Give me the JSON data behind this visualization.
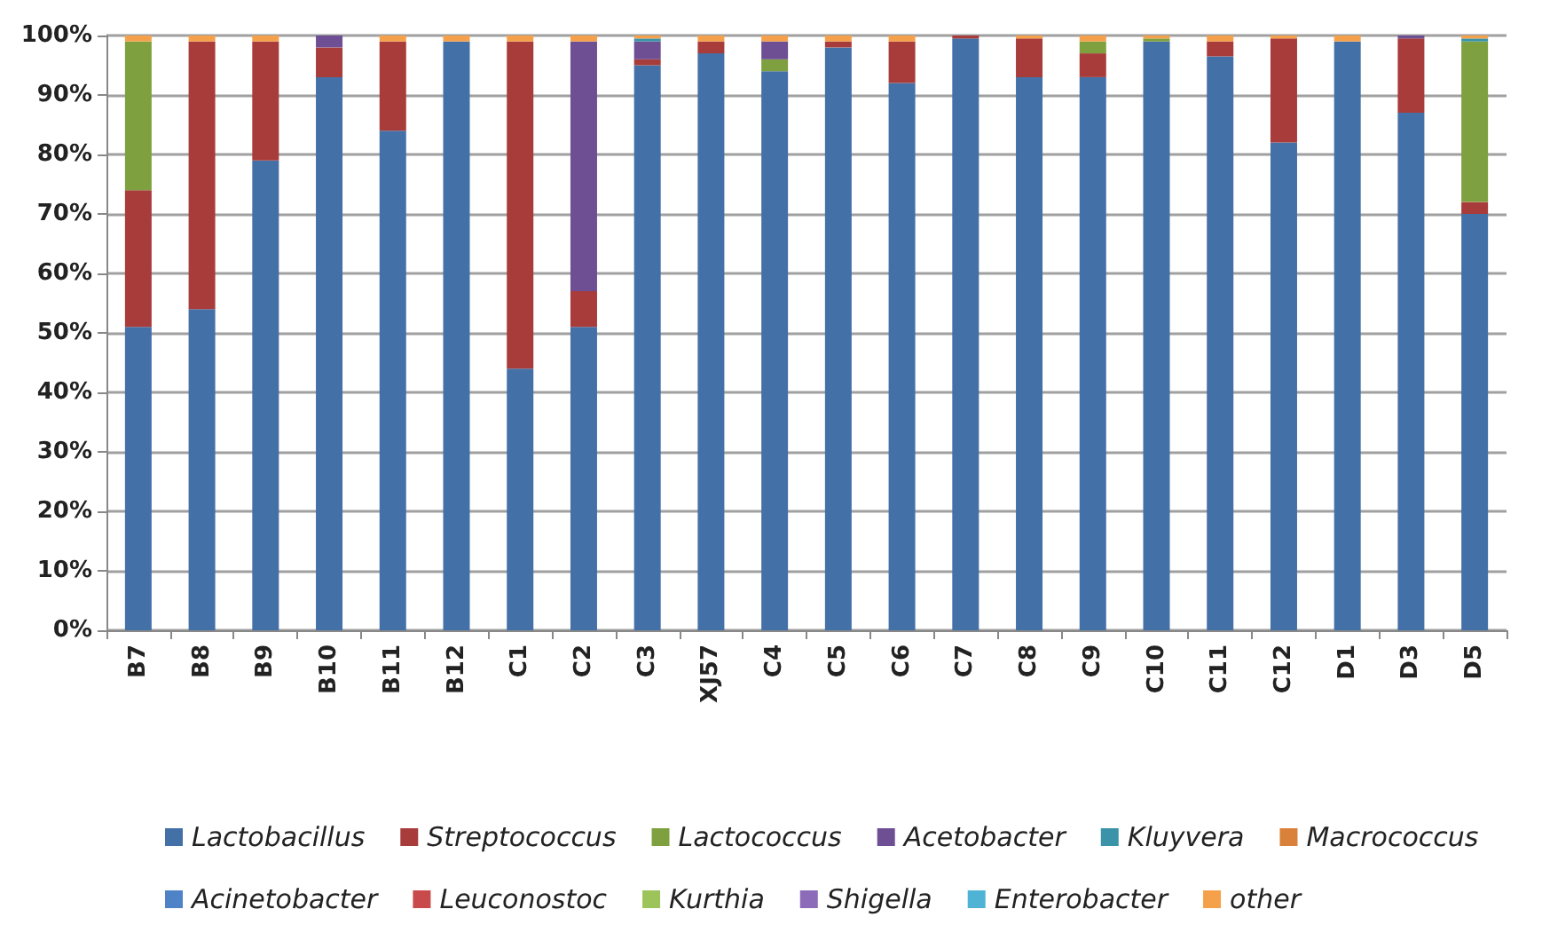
{
  "chart_data": {
    "type": "bar",
    "stacked": true,
    "grid": "y",
    "legend": "bottom",
    "categories": [
      "B7",
      "B8",
      "B9",
      "B10",
      "B11",
      "B12",
      "C1",
      "C2",
      "C3",
      "XJ57",
      "C4",
      "C5",
      "C6",
      "C7",
      "C8",
      "C9",
      "C10",
      "C11",
      "C12",
      "D1",
      "D3",
      "D5"
    ],
    "ylim": [
      0,
      100
    ],
    "yticks": [
      {
        "value": 0,
        "label": "0%"
      },
      {
        "value": 10,
        "label": "10%"
      },
      {
        "value": 20,
        "label": "20%"
      },
      {
        "value": 30,
        "label": "30%"
      },
      {
        "value": 40,
        "label": "40%"
      },
      {
        "value": 50,
        "label": "50%"
      },
      {
        "value": 60,
        "label": "60%"
      },
      {
        "value": 70,
        "label": "70%"
      },
      {
        "value": 80,
        "label": "80%"
      },
      {
        "value": 90,
        "label": "90%"
      },
      {
        "value": 100,
        "label": "100%"
      }
    ],
    "series": [
      {
        "name": "Lactobacillus",
        "color": "#4470a8",
        "values": [
          51,
          54,
          79,
          93,
          84,
          99,
          44,
          51,
          95,
          97,
          94,
          98,
          92,
          99.5,
          93,
          93,
          99,
          96.5,
          82,
          99,
          87,
          70
        ]
      },
      {
        "name": "Streptococcus",
        "color": "#a83c3a",
        "values": [
          23,
          45,
          20,
          5,
          15,
          0,
          55,
          6,
          1,
          2,
          0,
          1,
          7,
          0.5,
          6.5,
          4,
          0,
          2.5,
          17.5,
          0,
          12.5,
          2
        ]
      },
      {
        "name": "Lactococcus",
        "color": "#7fa03f",
        "values": [
          25,
          0,
          0,
          0,
          0,
          0,
          0,
          0,
          0,
          0,
          2,
          0,
          0,
          0,
          0,
          2,
          0.5,
          0,
          0,
          0,
          0,
          27
        ]
      },
      {
        "name": "Acetobacter",
        "color": "#6e4f93",
        "values": [
          0,
          0,
          0,
          2,
          0,
          0,
          0,
          42,
          3,
          0,
          3,
          0,
          0,
          0,
          0,
          0,
          0,
          0,
          0,
          0,
          0.5,
          0
        ]
      },
      {
        "name": "Kluyvera",
        "color": "#3a93a8",
        "values": [
          0,
          0,
          0,
          0,
          0,
          0,
          0,
          0,
          0.5,
          0,
          0,
          0,
          0,
          0,
          0,
          0,
          0,
          0,
          0,
          0,
          0,
          0.5
        ]
      },
      {
        "name": "Macrococcus",
        "color": "#d9813a",
        "values": [
          0,
          0,
          0,
          0,
          0,
          0,
          0,
          0,
          0,
          0,
          0,
          0,
          0,
          0,
          0,
          0,
          0,
          0,
          0,
          0,
          0,
          0
        ]
      },
      {
        "name": "Acinetobacter",
        "color": "#4f83c8",
        "values": [
          0,
          0,
          0,
          0,
          0,
          0,
          0,
          0,
          0,
          0,
          0,
          0,
          0,
          0,
          0,
          0,
          0,
          0,
          0,
          0,
          0,
          0
        ]
      },
      {
        "name": "Leuconostoc",
        "color": "#c84a4a",
        "values": [
          0,
          0,
          0,
          0,
          0,
          0,
          0,
          0,
          0,
          0,
          0,
          0,
          0,
          0,
          0,
          0,
          0,
          0,
          0,
          0,
          0,
          0
        ]
      },
      {
        "name": "Kurthia",
        "color": "#9cc45a",
        "values": [
          0,
          0,
          0,
          0,
          0,
          0,
          0,
          0,
          0,
          0,
          0,
          0,
          0,
          0,
          0,
          0,
          0,
          0,
          0,
          0,
          0,
          0
        ]
      },
      {
        "name": "Shigella",
        "color": "#8c6bb8",
        "values": [
          0,
          0,
          0,
          0,
          0,
          0,
          0,
          0,
          0,
          0,
          0,
          0,
          0,
          0,
          0,
          0,
          0,
          0,
          0,
          0,
          0,
          0
        ]
      },
      {
        "name": "Enterobacter",
        "color": "#4fb3d6",
        "values": [
          0,
          0,
          0,
          0,
          0,
          0,
          0,
          0,
          0,
          0,
          0,
          0,
          0,
          0,
          0,
          0,
          0,
          0,
          0,
          0,
          0,
          0
        ]
      },
      {
        "name": "other",
        "color": "#f5a04a",
        "values": [
          1,
          1,
          1,
          0,
          1,
          1,
          1,
          1,
          0.5,
          1,
          1,
          1,
          1,
          0,
          0.5,
          1,
          0.5,
          1,
          0.5,
          1,
          0,
          0.5
        ]
      }
    ]
  }
}
